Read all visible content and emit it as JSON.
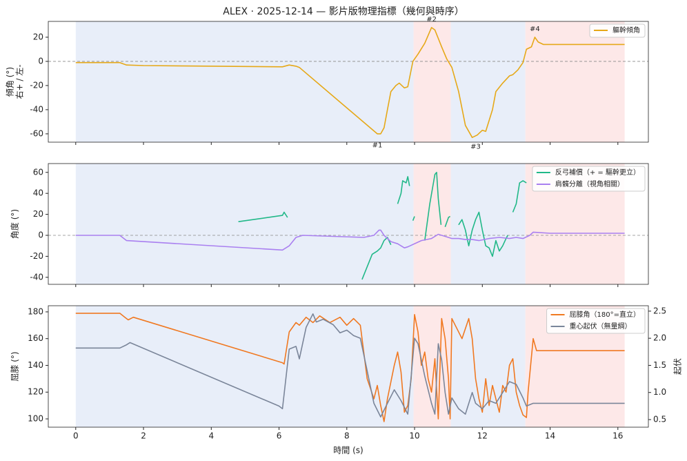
{
  "chart_data": [
    {
      "type": "line",
      "title": "ALEX · 2025-12-14 — 影片版物理指標（幾何與時序）",
      "ylabel": [
        "傾角 (°)",
        "右+ / 左-"
      ],
      "xlim": [
        -0.81,
        16.9
      ],
      "xticks": [
        0,
        2,
        4,
        6,
        8,
        10,
        12,
        14,
        16
      ],
      "ylim": [
        -66.9,
        33.1
      ],
      "yticks": [
        -60,
        -40,
        -20,
        0,
        20
      ],
      "hline": 0,
      "legend": "upper right",
      "spans": [
        {
          "start": 0,
          "end": 9.97,
          "color": "#e8eef9"
        },
        {
          "start": 9.97,
          "end": 11.07,
          "color": "#fde8e8"
        },
        {
          "start": 11.07,
          "end": 13.27,
          "color": "#e8eef9"
        },
        {
          "start": 13.27,
          "end": 16.2,
          "color": "#fde8e8"
        }
      ],
      "annotations": [
        {
          "text": "#1",
          "x": 8.9,
          "y": -61
        },
        {
          "text": "#2",
          "x": 10.5,
          "y": 28
        },
        {
          "text": "#3",
          "x": 11.8,
          "y": -62
        },
        {
          "text": "#4",
          "x": 13.55,
          "y": 20
        }
      ],
      "series": [
        {
          "name": "軀幹傾角",
          "color": "#e6a817",
          "x": [
            0,
            1.3,
            1.5,
            2,
            6.1,
            6.3,
            6.5,
            6.6,
            8.9,
            9.0,
            9.1,
            9.2,
            9.3,
            9.45,
            9.55,
            9.7,
            9.8,
            9.95,
            10.1,
            10.3,
            10.5,
            10.6,
            10.8,
            10.95,
            11.1,
            11.3,
            11.5,
            11.7,
            11.85,
            12.0,
            12.1,
            12.3,
            12.4,
            12.6,
            12.8,
            12.9,
            13.05,
            13.2,
            13.3,
            13.45,
            13.55,
            13.65,
            13.8,
            16.2
          ],
          "values": [
            -1,
            -1,
            -3,
            -3.5,
            -4.5,
            -3,
            -4,
            -5,
            -60,
            -60,
            -55,
            -40,
            -25,
            -20,
            -18,
            -22,
            -21,
            0,
            6,
            15,
            28,
            26,
            12,
            2,
            -5,
            -25,
            -53,
            -63,
            -61,
            -57,
            -58,
            -40,
            -25,
            -18,
            -12,
            -11,
            -7,
            -1,
            10,
            12,
            20,
            16,
            14,
            14
          ]
        }
      ]
    },
    {
      "type": "line",
      "ylabel": [
        "角度 (°)"
      ],
      "xlim": [
        -0.81,
        16.9
      ],
      "xticks": [
        0,
        2,
        4,
        6,
        8,
        10,
        12,
        14,
        16
      ],
      "ylim": [
        -46.7,
        68.4
      ],
      "yticks": [
        -40,
        -20,
        0,
        20,
        40,
        60
      ],
      "hline": 0,
      "legend": "upper right",
      "spans": [
        {
          "start": 0,
          "end": 9.97,
          "color": "#e8eef9"
        },
        {
          "start": 9.97,
          "end": 11.07,
          "color": "#fde8e8"
        },
        {
          "start": 11.07,
          "end": 13.27,
          "color": "#e8eef9"
        },
        {
          "start": 13.27,
          "end": 16.2,
          "color": "#fde8e8"
        }
      ],
      "series": [
        {
          "name": "反弓補償（+ = 驅幹更立）",
          "color": "#20b888",
          "x": [
            4.8,
            6.1,
            6.15,
            6.25,
            7,
            8.45,
            8.6,
            8.75,
            8.9,
            9.0,
            9.1,
            9.2,
            9.3,
            9.4,
            9.5,
            9.6,
            9.65,
            9.75,
            9.8,
            9.85,
            9.9,
            9.95,
            10.0,
            10.2,
            10.3,
            10.45,
            10.6,
            10.65,
            10.7,
            10.78,
            10.85,
            10.9,
            11.0,
            11.05,
            11.2,
            11.3,
            11.4,
            11.5,
            11.6,
            11.7,
            11.8,
            11.9,
            12.0,
            12.1,
            12.2,
            12.3,
            12.4,
            12.5,
            12.6,
            12.7,
            12.75,
            12.85,
            12.9,
            13.0,
            13.1,
            13.2,
            13.3
          ],
          "values": [
            13,
            19,
            22,
            17,
            null,
            -42,
            -30,
            -18,
            -15,
            -12,
            -5,
            -2,
            -9,
            null,
            30,
            40,
            52,
            50,
            56,
            47,
            null,
            14,
            18,
            null,
            -5,
            30,
            58,
            60,
            35,
            10,
            null,
            8,
            17,
            18,
            null,
            10,
            15,
            5,
            -10,
            5,
            15,
            22,
            5,
            -10,
            -12,
            -20,
            -5,
            -15,
            -10,
            -3,
            0,
            null,
            22,
            30,
            50,
            52,
            50
          ]
        },
        {
          "name": "肩髖分離（視角相關）",
          "color": "#a97ff0",
          "x": [
            0,
            1.3,
            1.5,
            6.1,
            6.3,
            6.5,
            6.7,
            8.5,
            8.8,
            8.95,
            9.0,
            9.1,
            9.3,
            9.5,
            9.7,
            9.8,
            10.2,
            10.5,
            10.7,
            10.9,
            11.1,
            11.3,
            11.5,
            11.7,
            11.9,
            12.2,
            12.5,
            12.8,
            13.0,
            13.2,
            13.4,
            13.5,
            14,
            16.2
          ],
          "values": [
            0,
            0,
            -5,
            -14,
            -10,
            -2,
            0,
            -2,
            0,
            5,
            5,
            0,
            -6,
            -8,
            -12,
            -11,
            -5,
            -3,
            1,
            -1,
            -3,
            -3,
            -4,
            -4,
            -5,
            -3,
            -2,
            -3,
            -2,
            -3,
            0,
            3,
            2,
            2
          ]
        }
      ]
    },
    {
      "type": "line",
      "ylabel": [
        "屈膝 (°)"
      ],
      "y2label": "起伏",
      "xlabel": "時間 (s)",
      "xlim": [
        -0.81,
        16.9
      ],
      "xticks": [
        0,
        2,
        4,
        6,
        8,
        10,
        12,
        14,
        16
      ],
      "ylim": [
        93.8,
        184.6
      ],
      "yticks": [
        100,
        120,
        140,
        160,
        180
      ],
      "y2lim": [
        0.36,
        2.6
      ],
      "y2ticks": [
        0.5,
        {
          "value": 1,
          "label": "1.0"
        },
        1.5,
        {
          "value": 2,
          "label": "2.0"
        },
        2.5
      ],
      "legend": "upper right",
      "spans": [
        {
          "start": 0,
          "end": 9.97,
          "color": "#e8eef9"
        },
        {
          "start": 9.97,
          "end": 11.07,
          "color": "#fde8e8"
        },
        {
          "start": 11.07,
          "end": 13.27,
          "color": "#e8eef9"
        },
        {
          "start": 13.27,
          "end": 16.2,
          "color": "#fde8e8"
        }
      ],
      "series": [
        {
          "name": "屈膝角（180°=直立）",
          "color": "#f07820",
          "x": [
            0,
            1.3,
            1.45,
            1.55,
            1.7,
            6.1,
            6.15,
            6.3,
            6.5,
            6.6,
            6.8,
            7,
            7.2,
            7.5,
            7.8,
            8.0,
            8.2,
            8.4,
            8.6,
            8.8,
            8.9,
            9.0,
            9.1,
            9.2,
            9.4,
            9.5,
            9.6,
            9.7,
            9.8,
            9.9,
            10.0,
            10.1,
            10.2,
            10.3,
            10.4,
            10.5,
            10.6,
            10.7,
            10.8,
            10.9,
            11.0,
            11.05,
            11.1,
            11.2,
            11.4,
            11.6,
            11.7,
            11.8,
            11.9,
            12.0,
            12.1,
            12.2,
            12.3,
            12.4,
            12.5,
            12.6,
            12.7,
            12.8,
            12.9,
            13.0,
            13.1,
            13.2,
            13.3,
            13.35,
            13.5,
            13.6,
            16.2
          ],
          "values": [
            179,
            179,
            176,
            174,
            176,
            142,
            141,
            165,
            172,
            170,
            176,
            172,
            177,
            172,
            176,
            170,
            175,
            170,
            130,
            115,
            125,
            110,
            98,
            115,
            140,
            150,
            135,
            105,
            110,
            130,
            178,
            165,
            140,
            150,
            130,
            120,
            145,
            100,
            175,
            160,
            130,
            100,
            175,
            170,
            160,
            175,
            160,
            130,
            115,
            105,
            130,
            110,
            125,
            115,
            105,
            125,
            120,
            140,
            145,
            120,
            110,
            103,
            101,
            120,
            160,
            151,
            151
          ]
        },
        {
          "name": "重心起伏（無量綱）",
          "color": "#7a8599",
          "axis": "y2",
          "x": [
            0,
            1.3,
            1.5,
            1.6,
            6.0,
            6.1,
            6.3,
            6.5,
            6.6,
            6.8,
            7.0,
            7.1,
            7.3,
            7.6,
            7.8,
            8.0,
            8.2,
            8.4,
            8.6,
            8.8,
            9.0,
            9.2,
            9.4,
            9.6,
            9.8,
            10.0,
            10.1,
            10.3,
            10.5,
            10.6,
            10.7,
            10.8,
            10.9,
            11.0,
            11.1,
            11.3,
            11.5,
            11.7,
            11.8,
            12.0,
            12.2,
            12.4,
            12.6,
            12.8,
            13.0,
            13.2,
            13.3,
            13.5,
            16.2
          ],
          "values": [
            1.82,
            1.82,
            1.88,
            1.92,
            0.75,
            0.7,
            1.8,
            1.85,
            1.62,
            2.2,
            2.45,
            2.3,
            2.35,
            2.25,
            2.1,
            2.15,
            2.05,
            2.0,
            1.4,
            0.8,
            0.55,
            0.8,
            1.05,
            0.85,
            0.6,
            2.0,
            1.9,
            1.3,
            0.8,
            0.6,
            1.9,
            1.6,
            1.0,
            0.6,
            0.9,
            0.7,
            0.6,
            1.0,
            0.8,
            0.7,
            0.85,
            0.8,
            1.0,
            1.2,
            1.15,
            0.9,
            0.75,
            0.8,
            0.8
          ]
        }
      ]
    }
  ]
}
